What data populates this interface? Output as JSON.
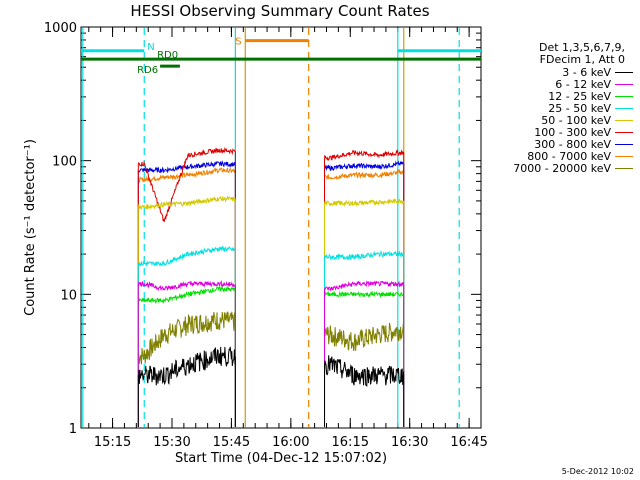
{
  "title": "HESSI Observing Summary Count Rates",
  "date_stamp": "5-Dec-2012 10:02",
  "legend": {
    "header": [
      "Det 1,3,5,6,7,9,",
      "FDecim 1, Att 0"
    ],
    "entries": [
      {
        "label": "3 - 6 keV",
        "color": "#000000"
      },
      {
        "label": "6 - 12 keV",
        "color": "#e000e0"
      },
      {
        "label": "12 - 25 keV",
        "color": "#00e000"
      },
      {
        "label": "25 - 50 keV",
        "color": "#00e0e0"
      },
      {
        "label": "50 - 100 keV",
        "color": "#d4c800"
      },
      {
        "label": "100 - 300 keV",
        "color": "#e00000"
      },
      {
        "label": "300 - 800 keV",
        "color": "#0000e0"
      },
      {
        "label": "800 - 7000 keV",
        "color": "#f08000"
      },
      {
        "label": "7000 - 20000 keV",
        "color": "#808000"
      }
    ]
  },
  "chart_data": {
    "type": "line",
    "title": "HESSI Observing Summary Count Rates",
    "xlabel": "Start Time (04-Dec-12 15:07:02)",
    "ylabel": "Count Rate (s⁻¹ detector⁻¹)",
    "y_scale": "log",
    "ylim": [
      1,
      1000
    ],
    "xlim": [
      "15:07:02",
      "16:48:00"
    ],
    "x_ticks": [
      "15:15",
      "15:30",
      "15:45",
      "16:00",
      "16:15",
      "16:30",
      "16:45"
    ],
    "y_ticks": [
      "1",
      "10",
      "100",
      "1000"
    ],
    "data_segments": [
      [
        "15:21:30",
        "15:46:00"
      ],
      [
        "16:08:30",
        "16:28:30"
      ]
    ],
    "series": [
      {
        "name": "3 - 6 keV",
        "color": "#000000",
        "values": [
          2.5,
          2.5,
          3.0,
          3.5,
          3.0,
          2.5,
          2.5,
          2.5
        ]
      },
      {
        "name": "6 - 12 keV",
        "color": "#e000e0",
        "values": [
          12,
          11,
          12,
          12,
          11,
          12,
          12,
          12
        ]
      },
      {
        "name": "12 - 25 keV",
        "color": "#00e000",
        "values": [
          9,
          9,
          10,
          11,
          10,
          10,
          10,
          10
        ]
      },
      {
        "name": "25 - 50 keV",
        "color": "#00e0e0",
        "values": [
          17,
          17,
          20,
          22,
          19,
          19,
          20,
          20
        ]
      },
      {
        "name": "50 - 100 keV",
        "color": "#d4c800",
        "values": [
          45,
          47,
          48,
          52,
          48,
          48,
          49,
          50
        ]
      },
      {
        "name": "100 - 300 keV",
        "color": "#e00000",
        "values": [
          95,
          35,
          110,
          120,
          105,
          115,
          110,
          115
        ]
      },
      {
        "name": "300 - 800 keV",
        "color": "#0000e0",
        "values": [
          85,
          85,
          90,
          95,
          88,
          92,
          90,
          95
        ]
      },
      {
        "name": "800 - 7000 keV",
        "color": "#f08000",
        "values": [
          72,
          75,
          78,
          85,
          75,
          78,
          78,
          82
        ]
      },
      {
        "name": "7000 - 20000 keV",
        "color": "#808000",
        "values": [
          3.5,
          5,
          6,
          6.5,
          5,
          4.5,
          5,
          5.5
        ]
      }
    ],
    "series_times": [
      "15:23",
      "15:28",
      "15:34",
      "15:42",
      "16:10",
      "16:16",
      "16:22",
      "16:28"
    ],
    "flags": [
      {
        "label": "N",
        "color": "#00e0e0",
        "intervals": [
          [
            "15:07:02",
            "15:23:00"
          ],
          [
            "16:27:00",
            "16:48:00"
          ]
        ],
        "level": 664
      },
      {
        "label": "S",
        "color": "#f08000",
        "intervals": [
          [
            "15:48:30",
            "16:04:30"
          ]
        ],
        "level": 790
      },
      {
        "label": "RD0",
        "color": "#007000",
        "intervals": [
          [
            "15:07:02",
            "16:48:00"
          ]
        ],
        "level": 575
      },
      {
        "label": "RD6",
        "color": "#007000",
        "intervals": [
          [
            "15:27:00",
            "15:32:00"
          ]
        ],
        "level": 510
      }
    ],
    "vertical_markers": [
      {
        "time": "15:07:30",
        "color": "#00e0e0",
        "style": "solid"
      },
      {
        "time": "15:23:00",
        "color": "#00e0e0",
        "style": "dashed"
      },
      {
        "time": "15:46:00",
        "color": "#00e0e0",
        "style": "solid"
      },
      {
        "time": "15:48:30",
        "color": "#c8a000",
        "style": "solid"
      },
      {
        "time": "16:04:30",
        "color": "#f08000",
        "style": "dashed"
      },
      {
        "time": "16:27:00",
        "color": "#00e0e0",
        "style": "solid"
      },
      {
        "time": "16:28:30",
        "color": "#c8a000",
        "style": "solid"
      },
      {
        "time": "16:42:30",
        "color": "#00e0e0",
        "style": "dashed"
      }
    ]
  }
}
